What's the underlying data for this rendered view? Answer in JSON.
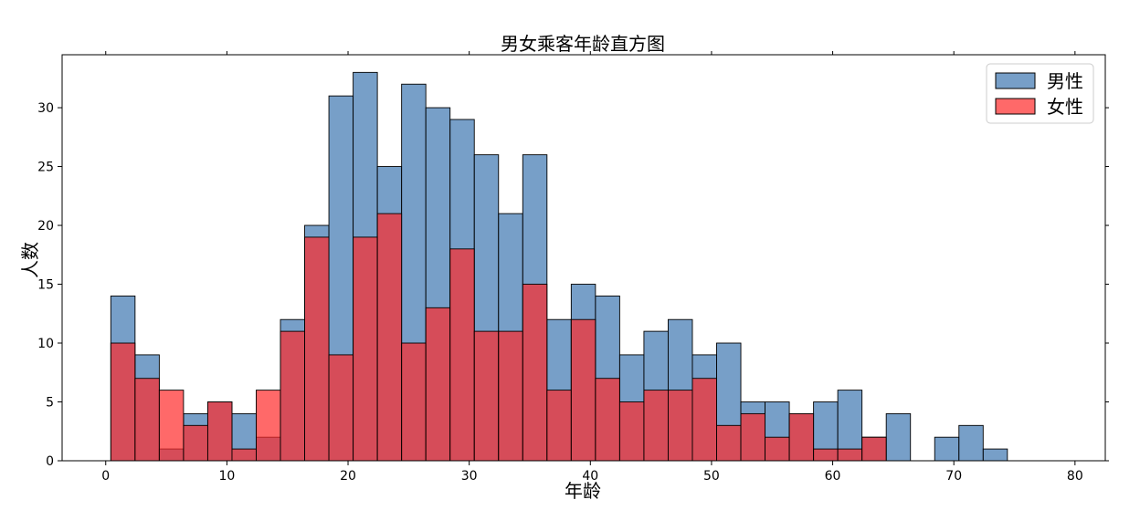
{
  "chart_data": {
    "type": "bar",
    "title": "男女乘客年龄直方图",
    "xlabel": "年龄",
    "ylabel": "人数",
    "xlim": [
      -3.6,
      82.5
    ],
    "ylim": [
      0,
      34.5
    ],
    "xticks": [
      0,
      10,
      20,
      30,
      40,
      50,
      60,
      70,
      80
    ],
    "yticks": [
      0,
      5,
      10,
      15,
      20,
      25,
      30
    ],
    "grid": false,
    "legend_position": "top-right",
    "bin_start": 0.42,
    "bin_width": 2,
    "series": [
      {
        "name": "男性",
        "color": "#4a7fb5",
        "values": [
          14,
          9,
          1,
          4,
          5,
          4,
          2,
          12,
          20,
          31,
          33,
          25,
          32,
          30,
          29,
          26,
          21,
          26,
          12,
          15,
          14,
          9,
          11,
          12,
          9,
          10,
          5,
          5,
          4,
          5,
          6,
          2,
          4,
          0,
          2,
          3,
          1,
          0,
          0,
          0
        ]
      },
      {
        "name": "女性",
        "color": "#ff2a2a",
        "values": [
          10,
          7,
          6,
          3,
          5,
          1,
          6,
          11,
          19,
          9,
          19,
          21,
          10,
          13,
          18,
          11,
          11,
          15,
          6,
          12,
          7,
          5,
          6,
          6,
          7,
          3,
          4,
          2,
          4,
          1,
          1,
          2,
          0,
          0,
          0,
          0,
          0,
          0,
          0,
          0
        ]
      }
    ]
  }
}
